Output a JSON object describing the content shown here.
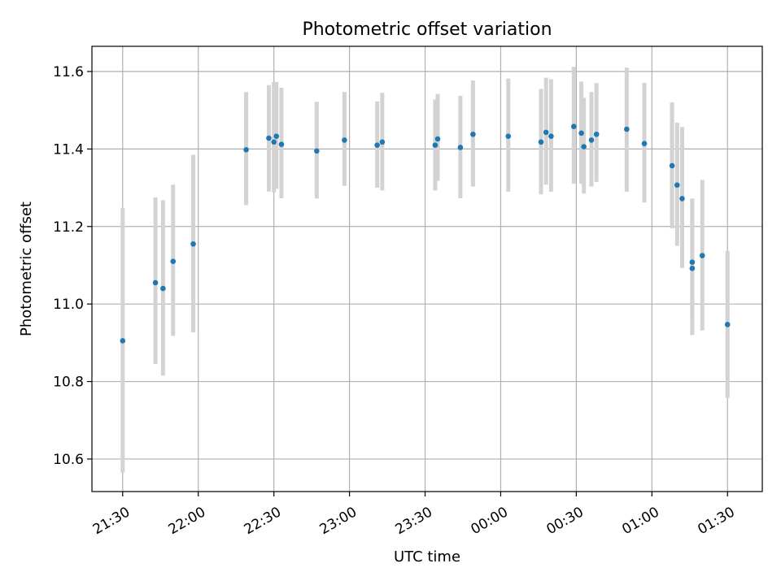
{
  "chart_data": {
    "type": "scatter",
    "title": "Photometric offset variation",
    "xlabel": "UTC time",
    "ylabel": "Photometric offset",
    "grid": true,
    "colors": {
      "point": "#1f77b4",
      "errorbar": "#d3d3d3",
      "grid": "#b0b0b0"
    },
    "x_ticks": [
      "21:30",
      "22:00",
      "22:30",
      "23:00",
      "23:30",
      "00:00",
      "00:30",
      "01:00",
      "01:30"
    ],
    "y_ticks": [
      "10.6",
      "10.8",
      "11.0",
      "11.2",
      "11.4",
      "11.6"
    ],
    "x_minutes_range": [
      -12.2,
      253.8
    ],
    "ylim": [
      10.516,
      11.665
    ],
    "series": [
      {
        "x": [
          "21:30",
          "21:43",
          "21:46",
          "21:50",
          "21:58",
          "22:19",
          "22:28",
          "22:30",
          "22:31",
          "22:33",
          "22:47",
          "22:58",
          "23:11",
          "23:13",
          "23:34",
          "23:35",
          "23:44",
          "23:49",
          "00:03",
          "00:16",
          "00:18",
          "00:20",
          "00:29",
          "00:32",
          "00:33",
          "00:36",
          "00:38",
          "00:50",
          "00:57",
          "01:08",
          "01:10",
          "01:12",
          "01:16",
          "01:16",
          "01:20",
          "01:30"
        ],
        "y": [
          10.905,
          11.055,
          11.04,
          11.11,
          11.155,
          11.398,
          11.428,
          11.418,
          11.433,
          11.412,
          11.395,
          11.423,
          11.41,
          11.418,
          11.41,
          11.426,
          11.404,
          11.438,
          11.433,
          11.418,
          11.443,
          11.433,
          11.458,
          11.441,
          11.406,
          11.423,
          11.438,
          11.451,
          11.414,
          11.357,
          11.307,
          11.272,
          11.108,
          11.092,
          11.125,
          10.947
        ],
        "lower": [
          10.565,
          10.845,
          10.815,
          10.918,
          10.927,
          11.255,
          11.29,
          11.288,
          11.297,
          11.273,
          11.272,
          11.305,
          11.3,
          11.293,
          11.293,
          11.318,
          11.273,
          11.303,
          11.29,
          11.283,
          11.308,
          11.29,
          11.31,
          11.31,
          11.285,
          11.303,
          11.315,
          11.29,
          11.262,
          11.195,
          11.15,
          11.093,
          10.95,
          10.92,
          10.932,
          10.758
        ],
        "upper": [
          11.248,
          11.275,
          11.268,
          11.308,
          11.385,
          11.547,
          11.565,
          11.573,
          11.573,
          11.558,
          11.522,
          11.547,
          11.523,
          11.545,
          11.528,
          11.542,
          11.537,
          11.577,
          11.582,
          11.555,
          11.584,
          11.58,
          11.612,
          11.574,
          11.532,
          11.547,
          11.57,
          11.61,
          11.571,
          11.52,
          11.468,
          11.457,
          11.272,
          11.268,
          11.32,
          11.137
        ]
      }
    ]
  }
}
